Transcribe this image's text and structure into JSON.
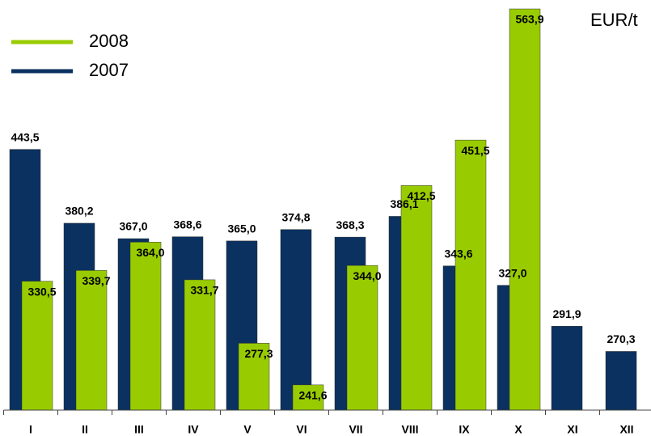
{
  "chart_data": {
    "type": "bar",
    "unit": "EUR/t",
    "categories": [
      "I",
      "II",
      "III",
      "IV",
      "V",
      "VI",
      "VII",
      "VIII",
      "IX",
      "X",
      "XI",
      "XII"
    ],
    "series": [
      {
        "name": "2007",
        "color": "#0a3160",
        "values": [
          443.5,
          380.2,
          367.0,
          368.6,
          365.0,
          374.8,
          368.3,
          386.1,
          343.6,
          327.0,
          291.9,
          270.3
        ],
        "value_labels": [
          "443,5",
          "380,2",
          "367,0",
          "368,6",
          "365,0",
          "374,8",
          "368,3",
          "386,1",
          "343,6",
          "327,0",
          "291,9",
          "270,3"
        ]
      },
      {
        "name": "2008",
        "color": "#99cc00",
        "values": [
          330.5,
          339.7,
          364.0,
          331.7,
          277.3,
          241.6,
          344.0,
          412.5,
          451.5,
          563.9,
          null,
          null
        ],
        "value_labels": [
          "330,5",
          "339,7",
          "364,0",
          "331,7",
          "277,3",
          "241,6",
          "344,0",
          "412,5",
          "451,5",
          "563,9",
          null,
          null
        ]
      }
    ],
    "ylim": [
      220,
      566
    ]
  }
}
